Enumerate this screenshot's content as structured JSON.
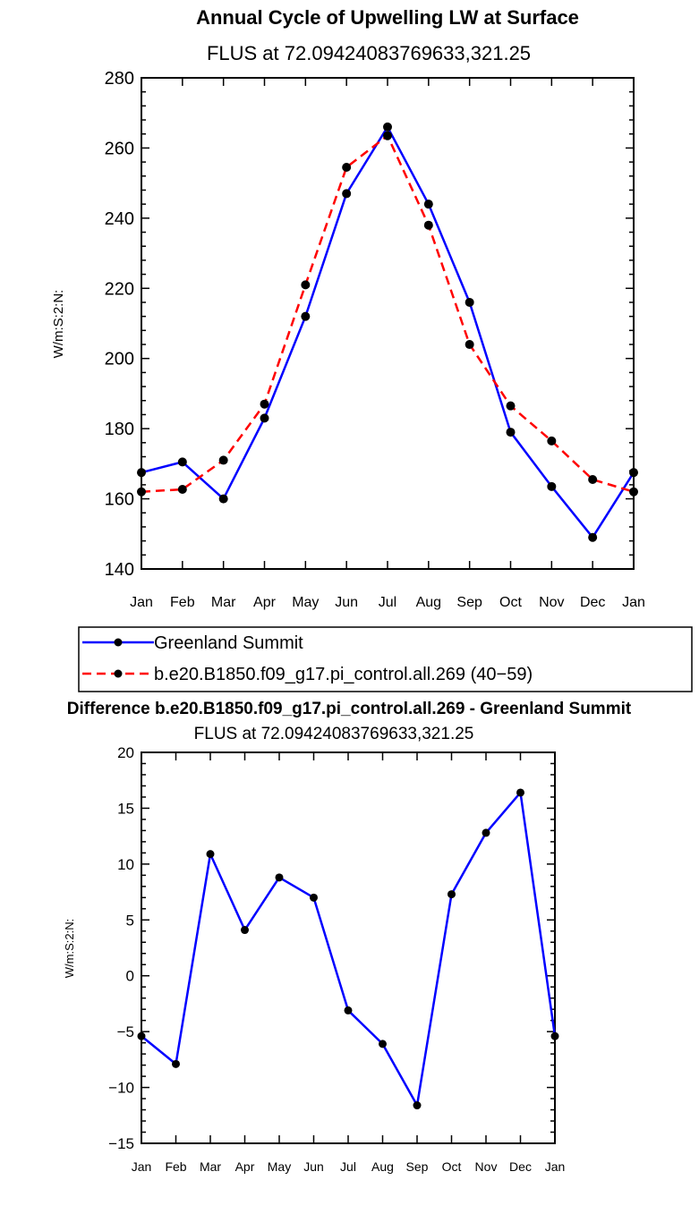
{
  "chart_data": [
    {
      "type": "line",
      "title": "Annual Cycle of Upwelling LW at Surface",
      "subtitle": "FLUS at 72.09424083769633,321.25",
      "xlabel": "",
      "ylabel": "W/m:S:2:N:",
      "categories": [
        "Jan",
        "Feb",
        "Mar",
        "Apr",
        "May",
        "Jun",
        "Jul",
        "Aug",
        "Sep",
        "Oct",
        "Nov",
        "Dec",
        "Jan"
      ],
      "ylim": [
        140,
        280
      ],
      "yticks": [
        140,
        160,
        180,
        200,
        220,
        240,
        260,
        280
      ],
      "yticks_labels": [
        "140",
        "160",
        "180",
        "200",
        "220",
        "240",
        "260",
        "280"
      ],
      "series": [
        {
          "name": "Greenland Summit",
          "color": "#0000ff",
          "dash": "solid",
          "values": [
            167.5,
            170.5,
            160,
            183,
            212,
            247,
            266,
            244,
            216,
            179,
            163.5,
            149,
            167.5
          ]
        },
        {
          "name": "b.e20.B1850.f09_g17.pi_control.all.269 (40−59)",
          "color": "#ff0000",
          "dash": "dashed",
          "values": [
            162,
            162.7,
            171,
            187,
            221,
            254.5,
            263.5,
            238,
            204,
            186.5,
            176.5,
            165.5,
            162
          ]
        }
      ],
      "legend": "below"
    },
    {
      "type": "line",
      "title": "Difference b.e20.B1850.f09_g17.pi_control.all.269 - Greenland Summit",
      "subtitle": "FLUS at 72.09424083769633,321.25",
      "xlabel": "",
      "ylabel": "W/m:S:2:N:",
      "categories": [
        "Jan",
        "Feb",
        "Mar",
        "Apr",
        "May",
        "Jun",
        "Jul",
        "Aug",
        "Sep",
        "Oct",
        "Nov",
        "Dec",
        "Jan"
      ],
      "ylim": [
        -15,
        20
      ],
      "yticks": [
        -15,
        -10,
        -5,
        0,
        5,
        10,
        15,
        20
      ],
      "yticks_labels": [
        "−15",
        "−10",
        "−5",
        "0",
        "5",
        "10",
        "15",
        "20"
      ],
      "series": [
        {
          "name": "Difference",
          "color": "#0000ff",
          "dash": "solid",
          "values": [
            -5.4,
            -7.9,
            10.9,
            4.1,
            8.8,
            7.0,
            -3.1,
            -6.1,
            -11.6,
            7.3,
            12.8,
            16.4,
            -5.4
          ]
        }
      ]
    }
  ]
}
